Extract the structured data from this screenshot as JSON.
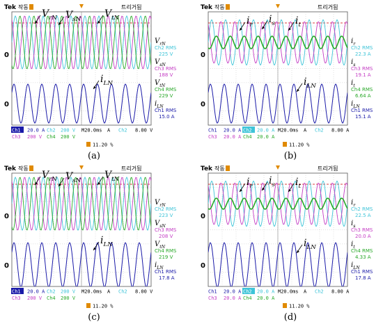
{
  "colors": {
    "ch1": "#1a1aa8",
    "ch2": "#3ec4d8",
    "ch3": "#c43cc4",
    "ch4": "#28a828",
    "screen_bg": "#ffffff",
    "grid": "#b0b0b0",
    "trigger_red": "#d00000",
    "marker_orange": "#e08a00"
  },
  "chart_data": [
    {
      "panel": "a",
      "caption": "(a)",
      "type": "line",
      "header": {
        "brand": "Tek",
        "mode": "작동",
        "trigger_label": "트리거됨"
      },
      "traces": [
        {
          "channel": "Ch2",
          "label": "V_rN",
          "color": "#3ec4d8",
          "cycles": 10,
          "level": 0.7
        },
        {
          "channel": "Ch3",
          "label": "V_sN",
          "color": "#c43cc4",
          "cycles": 10,
          "level": 0.7
        },
        {
          "channel": "Ch4",
          "label": "V_tN",
          "color": "#28a828",
          "cycles": 10,
          "level": 0.7
        },
        {
          "channel": "Ch1",
          "label": "i_LN",
          "color": "#1a1aa8",
          "cycles": 10,
          "level": 0.7
        }
      ],
      "overlay_labels": [
        {
          "sym": "V",
          "sub": "rN"
        },
        {
          "sym": "V",
          "sub": "sN"
        },
        {
          "sym": "V",
          "sub": "tN"
        },
        {
          "sym": "i",
          "sub": "LN"
        }
      ],
      "readouts": [
        {
          "sym": "V",
          "sub": "rN",
          "line2": "Ch2 RMS",
          "value": "225 V",
          "color": "#3ec4d8"
        },
        {
          "sym": "V",
          "sub": "sN",
          "line2": "Ch3 RMS",
          "value": "188 V",
          "color": "#c43cc4"
        },
        {
          "sym": "V",
          "sub": "tN",
          "line2": "Ch4 RMS",
          "value": "229 V",
          "color": "#28a828"
        },
        {
          "sym": "i",
          "sub": "LN",
          "line2": "Ch1 RMS",
          "value": "15.0 A",
          "color": "#1a1aa8"
        }
      ],
      "ground_markers": [
        "0",
        "0"
      ],
      "settings_row1": [
        {
          "text": "Ch1",
          "color": "#ffffff",
          "bg": "#1a1aa8"
        },
        {
          "text": "20.0 A",
          "color": "#1a1aa8",
          "bg": ""
        },
        {
          "text": "Ch2",
          "color": "#3ec4d8",
          "bg": ""
        },
        {
          "text": "200 V",
          "color": "#3ec4d8",
          "bg": ""
        },
        {
          "text": "M20.0ms",
          "color": "#000000",
          "bg": ""
        },
        {
          "text": "A",
          "color": "#000000",
          "bg": ""
        },
        {
          "text": "Ch2",
          "color": "#3ec4d8",
          "bg": ""
        },
        {
          "text": "8.00 V",
          "color": "#000000",
          "bg": ""
        }
      ],
      "settings_row2": [
        {
          "text": "Ch3",
          "color": "#c43cc4",
          "bg": ""
        },
        {
          "text": "200 V",
          "color": "#c43cc4",
          "bg": ""
        },
        {
          "text": "Ch4",
          "color": "#28a828",
          "bg": ""
        },
        {
          "text": "200 V",
          "color": "#28a828",
          "bg": ""
        }
      ],
      "trigger_position": "11.20 %"
    },
    {
      "panel": "b",
      "caption": "(b)",
      "type": "line",
      "header": {
        "brand": "Tek",
        "mode": "작동",
        "trigger_label": "트리거됨"
      },
      "traces": [
        {
          "channel": "Ch2",
          "label": "i_r",
          "color": "#3ec4d8",
          "cycles": 10,
          "level": 0.6
        },
        {
          "channel": "Ch3",
          "label": "i_s",
          "color": "#c43cc4",
          "cycles": 10,
          "level": 0.55
        },
        {
          "channel": "Ch4",
          "label": "i_t",
          "color": "#28a828",
          "cycles": 10,
          "level": 0.25
        },
        {
          "channel": "Ch1",
          "label": "i_LN",
          "color": "#1a1aa8",
          "cycles": 10,
          "level": 0.7
        }
      ],
      "overlay_labels": [
        {
          "sym": "i",
          "sub": "r"
        },
        {
          "sym": "i",
          "sub": "s"
        },
        {
          "sym": "i",
          "sub": "t"
        },
        {
          "sym": "i",
          "sub": "LN"
        }
      ],
      "readouts": [
        {
          "sym": "i",
          "sub": "r",
          "line2": "Ch2 RMS",
          "value": "22.3 A",
          "color": "#3ec4d8"
        },
        {
          "sym": "i",
          "sub": "s",
          "line2": "Ch3 RMS",
          "value": "19.1 A",
          "color": "#c43cc4"
        },
        {
          "sym": "i",
          "sub": "t",
          "line2": "Ch4 RMS",
          "value": "6.64 A",
          "color": "#28a828"
        },
        {
          "sym": "i",
          "sub": "LN",
          "line2": "Ch1 RMS",
          "value": "15.1 A",
          "color": "#1a1aa8"
        }
      ],
      "ground_markers": [
        "0",
        "0"
      ],
      "settings_row1": [
        {
          "text": "Ch1",
          "color": "#1a1aa8",
          "bg": ""
        },
        {
          "text": "20.0 A",
          "color": "#1a1aa8",
          "bg": ""
        },
        {
          "text": "Ch2",
          "color": "#ffffff",
          "bg": "#3ec4d8"
        },
        {
          "text": "20.0 A",
          "color": "#3ec4d8",
          "bg": ""
        },
        {
          "text": "M20.0ms",
          "color": "#000000",
          "bg": ""
        },
        {
          "text": "A",
          "color": "#000000",
          "bg": ""
        },
        {
          "text": "Ch2",
          "color": "#3ec4d8",
          "bg": ""
        },
        {
          "text": "8.00 A",
          "color": "#000000",
          "bg": ""
        }
      ],
      "settings_row2": [
        {
          "text": "Ch3",
          "color": "#c43cc4",
          "bg": ""
        },
        {
          "text": "20.0 A",
          "color": "#c43cc4",
          "bg": ""
        },
        {
          "text": "Ch4",
          "color": "#28a828",
          "bg": ""
        },
        {
          "text": "20.0 A",
          "color": "#28a828",
          "bg": ""
        }
      ],
      "trigger_position": "11.20 %"
    },
    {
      "panel": "c",
      "caption": "(c)",
      "type": "line",
      "header": {
        "brand": "Tek",
        "mode": "작동",
        "trigger_label": "트리거됨"
      },
      "traces": [
        {
          "channel": "Ch2",
          "label": "V_rN",
          "color": "#3ec4d8",
          "cycles": 10,
          "level": 0.7
        },
        {
          "channel": "Ch3",
          "label": "V_sN",
          "color": "#c43cc4",
          "cycles": 10,
          "level": 0.7
        },
        {
          "channel": "Ch4",
          "label": "V_tN",
          "color": "#28a828",
          "cycles": 10,
          "level": 0.7
        },
        {
          "channel": "Ch1",
          "label": "i_LN",
          "color": "#1a1aa8",
          "cycles": 10,
          "level": 0.8
        }
      ],
      "overlay_labels": [
        {
          "sym": "V",
          "sub": "rN"
        },
        {
          "sym": "V",
          "sub": "sN"
        },
        {
          "sym": "V",
          "sub": "tN"
        },
        {
          "sym": "i",
          "sub": "LN"
        }
      ],
      "readouts": [
        {
          "sym": "V",
          "sub": "rN",
          "line2": "Ch2 RMS",
          "value": "223 V",
          "color": "#3ec4d8"
        },
        {
          "sym": "V",
          "sub": "sN",
          "line2": "Ch3 RMS",
          "value": "208 V",
          "color": "#c43cc4"
        },
        {
          "sym": "V",
          "sub": "tN",
          "line2": "Ch4 RMS",
          "value": "219 V",
          "color": "#28a828"
        },
        {
          "sym": "i",
          "sub": "LN",
          "line2": "Ch1 RMS",
          "value": "17.8 A",
          "color": "#1a1aa8"
        }
      ],
      "ground_markers": [
        "0",
        "0"
      ],
      "settings_row1": [
        {
          "text": "Ch1",
          "color": "#ffffff",
          "bg": "#1a1aa8"
        },
        {
          "text": "20.0 A",
          "color": "#1a1aa8",
          "bg": ""
        },
        {
          "text": "Ch2",
          "color": "#3ec4d8",
          "bg": ""
        },
        {
          "text": "200 V",
          "color": "#3ec4d8",
          "bg": ""
        },
        {
          "text": "M20.0ms",
          "color": "#000000",
          "bg": ""
        },
        {
          "text": "A",
          "color": "#000000",
          "bg": ""
        },
        {
          "text": "Ch2",
          "color": "#3ec4d8",
          "bg": ""
        },
        {
          "text": "8.00 V",
          "color": "#000000",
          "bg": ""
        }
      ],
      "settings_row2": [
        {
          "text": "Ch3",
          "color": "#c43cc4",
          "bg": ""
        },
        {
          "text": "200 V",
          "color": "#c43cc4",
          "bg": ""
        },
        {
          "text": "Ch4",
          "color": "#28a828",
          "bg": ""
        },
        {
          "text": "200 V",
          "color": "#28a828",
          "bg": ""
        }
      ],
      "trigger_position": "11.20 %"
    },
    {
      "panel": "d",
      "caption": "(d)",
      "type": "line",
      "header": {
        "brand": "Tek",
        "mode": "작동",
        "trigger_label": "트리거됨"
      },
      "traces": [
        {
          "channel": "Ch2",
          "label": "i_r",
          "color": "#3ec4d8",
          "cycles": 10,
          "level": 0.6
        },
        {
          "channel": "Ch3",
          "label": "i_s",
          "color": "#c43cc4",
          "cycles": 10,
          "level": 0.55
        },
        {
          "channel": "Ch4",
          "label": "i_t",
          "color": "#28a828",
          "cycles": 10,
          "level": 0.22
        },
        {
          "channel": "Ch1",
          "label": "i_LN",
          "color": "#1a1aa8",
          "cycles": 10,
          "level": 0.8
        }
      ],
      "overlay_labels": [
        {
          "sym": "i",
          "sub": "r"
        },
        {
          "sym": "i",
          "sub": "s"
        },
        {
          "sym": "i",
          "sub": "t"
        },
        {
          "sym": "i",
          "sub": "LN"
        }
      ],
      "readouts": [
        {
          "sym": "i",
          "sub": "r",
          "line2": "Ch2 RMS",
          "value": "22.5 A",
          "color": "#3ec4d8"
        },
        {
          "sym": "i",
          "sub": "s",
          "line2": "Ch3 RMS",
          "value": "20.0 A",
          "color": "#c43cc4"
        },
        {
          "sym": "i",
          "sub": "t",
          "line2": "Ch4 RMS",
          "value": "4.33 A",
          "color": "#28a828"
        },
        {
          "sym": "i",
          "sub": "LN",
          "line2": "Ch1 RMS",
          "value": "17.8 A",
          "color": "#1a1aa8"
        }
      ],
      "ground_markers": [
        "0",
        "0"
      ],
      "settings_row1": [
        {
          "text": "Ch1",
          "color": "#1a1aa8",
          "bg": ""
        },
        {
          "text": "20.0 A",
          "color": "#1a1aa8",
          "bg": ""
        },
        {
          "text": "Ch2",
          "color": "#ffffff",
          "bg": "#3ec4d8"
        },
        {
          "text": "20.0 A",
          "color": "#3ec4d8",
          "bg": ""
        },
        {
          "text": "M20.0ms",
          "color": "#000000",
          "bg": ""
        },
        {
          "text": "A",
          "color": "#000000",
          "bg": ""
        },
        {
          "text": "Ch2",
          "color": "#3ec4d8",
          "bg": ""
        },
        {
          "text": "8.00 A",
          "color": "#000000",
          "bg": ""
        }
      ],
      "settings_row2": [
        {
          "text": "Ch3",
          "color": "#c43cc4",
          "bg": ""
        },
        {
          "text": "20.0 A",
          "color": "#c43cc4",
          "bg": ""
        },
        {
          "text": "Ch4",
          "color": "#28a828",
          "bg": ""
        },
        {
          "text": "20.0 A",
          "color": "#28a828",
          "bg": ""
        }
      ],
      "trigger_position": "11.20 %"
    }
  ]
}
